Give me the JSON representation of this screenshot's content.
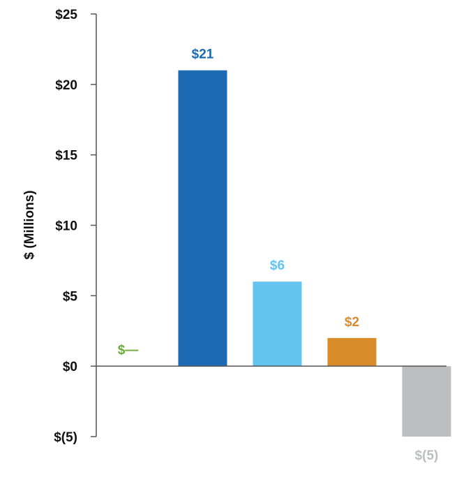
{
  "chart_data": {
    "type": "bar",
    "title": "",
    "xlabel": "",
    "ylabel": "$ (Millions)",
    "ylim": [
      -5,
      25
    ],
    "yticks": [
      25,
      20,
      15,
      10,
      5,
      0,
      -5
    ],
    "ytick_labels": [
      "$25",
      "$20",
      "$15",
      "$10",
      "$5",
      "$0",
      "$(5)"
    ],
    "grid": false,
    "bars": [
      {
        "value": 0,
        "label": "$—",
        "color": "#6aaa3a"
      },
      {
        "value": 21,
        "label": "$21",
        "color": "#1b6ab3"
      },
      {
        "value": 6,
        "label": "$6",
        "color": "#62c4ef"
      },
      {
        "value": 2,
        "label": "$2",
        "color": "#d98c2a"
      },
      {
        "value": -5,
        "label": "$(5)",
        "color": "#bdbec0"
      }
    ]
  }
}
